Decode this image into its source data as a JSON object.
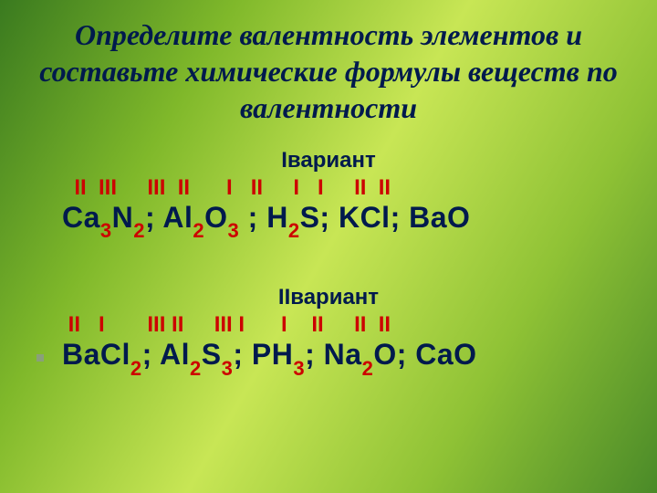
{
  "title": "Определите валентность элементов и составьте химические формулы веществ по валентности",
  "variant1": {
    "label": "Iвариант",
    "valences": "  II  III     III  II      I   II     I   I     II  II",
    "formulas": [
      {
        "t": "Ca"
      },
      {
        "s": "3"
      },
      {
        "t": "N"
      },
      {
        "s": "2"
      },
      {
        "t": "; Al"
      },
      {
        "s": "2"
      },
      {
        "t": "O"
      },
      {
        "s": "3"
      },
      {
        "t": " ; H"
      },
      {
        "s": "2"
      },
      {
        "t": "S;  KCl;  BaO"
      }
    ]
  },
  "variant2": {
    "label": "IIвариант",
    "valences": " II   I       III II     III I      I    II     II  II",
    "formulas": [
      {
        "t": "BaCl"
      },
      {
        "s": "2"
      },
      {
        "t": ";  Al"
      },
      {
        "s": "2"
      },
      {
        "t": "S"
      },
      {
        "s": "3"
      },
      {
        "t": ";  PH"
      },
      {
        "s": "3"
      },
      {
        "t": ";  Na"
      },
      {
        "s": "2"
      },
      {
        "t": "O;  CaO"
      }
    ]
  }
}
